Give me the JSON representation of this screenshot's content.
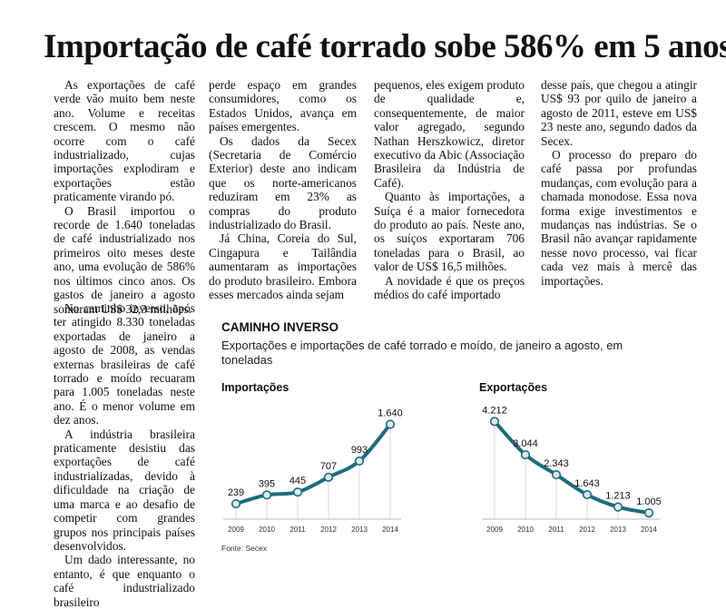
{
  "article": {
    "headline": "Importação de café torrado sobe 586% em 5 anos",
    "col1": [
      "As exportações de café verde vão muito bem neste ano. Volume e receitas crescem. O mesmo não ocorre com o café industrializado, cujas importações explodiram e exportações estão praticamente virando pó.",
      "O Brasil importou o recorde de 1.640 toneladas de café industrializado nos primeiros oito meses deste ano, uma evolução de 586% nos últimos cinco anos. Os gastos de janeiro a agosto somaram US$ 32,3 milhões."
    ],
    "col1b": [
      "No caminho inverso, após ter atingido 8.330 toneladas exportadas de janeiro a agosto de 2008, as vendas externas brasileiras de café torrado e moído recuaram para 1.005 toneladas neste ano. É o menor volume em dez anos.",
      "A indústria brasileira praticamente desistiu das exportações de café industrializadas, devido à dificuldade na criação de uma marca e ao desafio de competir com grandes grupos nos principais países desenvolvidos.",
      "Um dado interessante, no entanto, é que enquanto o café industrializado brasileiro"
    ],
    "col2": [
      "perde espaço em grandes consumidores, como os Estados Unidos, avança em países emergentes.",
      "Os dados da Secex (Secretaria de Comércio Exterior) deste ano indicam que os norte-americanos reduziram em 23% as compras do produto industrializado do Brasil.",
      "Já China, Coreia do Sul, Cingapura e Tailândia aumentaram as importações do produto brasileiro. Embora esses mercados ainda sejam"
    ],
    "col3": [
      "pequenos, eles exigem produto de qualidade e, consequentemente, de maior valor agregado, segundo Nathan Herszkowicz, diretor executivo da Abic (Associação Brasileira da Indústria de Café).",
      "Quanto às importações, a Suíça é a maior fornecedora do produto ao país. Neste ano, os suíços exportaram 706 toneladas para o Brasil, ao valor de US$ 16,5 milhões.",
      "A novidade é que os preços médios do café importado"
    ],
    "col4": [
      "desse país, que chegou a atingir US$ 93 por quilo de janeiro a agosto de 2011, esteve em US$ 23 neste ano, segundo dados da Secex.",
      "O processo do preparo do café passa por profundas mudanças, com evolução para a chamada monodose. Essa nova forma exige investimentos e mudanças nas indústrias. Se o Brasil não avançar rapidamente nesse novo processo, vai ficar cada vez mais à mercê das importações."
    ]
  },
  "infographic": {
    "title": "CAMINHO INVERSO",
    "subtitle": "Exportações e importações de café torrado e moído, de janeiro a agosto, em toneladas",
    "source": "Fonte: Secex"
  },
  "chart_data": [
    {
      "type": "line",
      "title": "Importações",
      "x": [
        "2009",
        "2010",
        "2011",
        "2012",
        "2013",
        "2014"
      ],
      "values": [
        239,
        395,
        445,
        707,
        993,
        1640
      ],
      "labels": [
        "239",
        "395",
        "445",
        "707",
        "993",
        "1.640"
      ],
      "line_color": "#1f6b7a",
      "marker_color": "#dfe9ec"
    },
    {
      "type": "line",
      "title": "Exportações",
      "x": [
        "2009",
        "2010",
        "2011",
        "2012",
        "2013",
        "2014"
      ],
      "values": [
        4212,
        3044,
        2343,
        1643,
        1213,
        1005
      ],
      "labels": [
        "4.212",
        "3.044",
        "2.343",
        "1.643",
        "1.213",
        "1.005"
      ],
      "line_color": "#1f6b7a",
      "marker_color": "#dfe9ec"
    }
  ]
}
